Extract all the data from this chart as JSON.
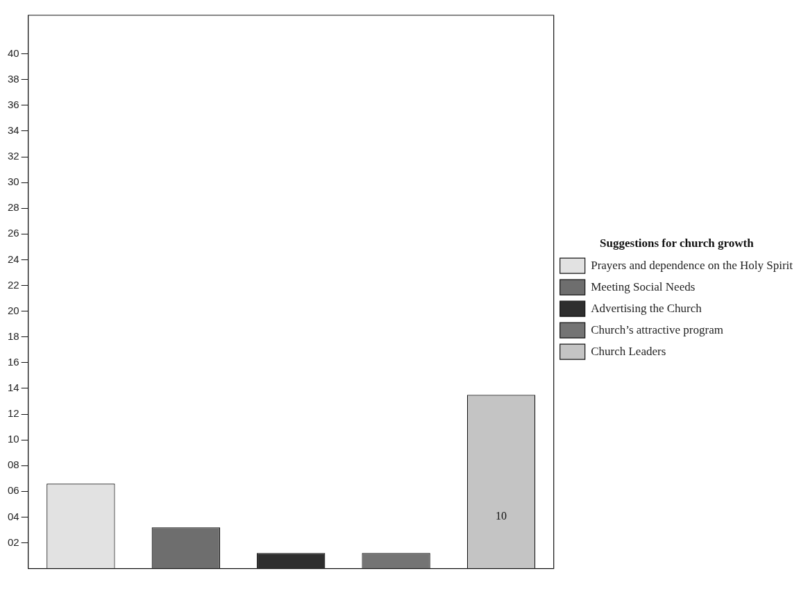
{
  "chart_data": {
    "type": "bar",
    "legend_title": "Suggestions for church growth",
    "categories": [
      null,
      null,
      null,
      null,
      null
    ],
    "stacked": true,
    "series": [
      {
        "name": "Prayers and dependence on the Holy Spirit",
        "color": "#e2e2e2",
        "values": [
          6.6,
          null,
          null,
          null,
          null
        ]
      },
      {
        "name": "Meeting Social Needs",
        "color": "#6e6e6e",
        "values": [
          null,
          3.2,
          null,
          null,
          null
        ]
      },
      {
        "name": "Advertising the Church",
        "color": "#2e2e2e",
        "values": [
          null,
          null,
          1.2,
          null,
          null
        ]
      },
      {
        "name": "Church’s attractive program",
        "color": "#747474",
        "values": [
          null,
          null,
          null,
          1.2,
          null
        ]
      },
      {
        "name": "Church Leaders",
        "color": "#c4c4c4",
        "values": [
          null,
          null,
          null,
          null,
          13.5
        ]
      }
    ],
    "annotations": [
      "10"
    ],
    "ylim": [
      0,
      43
    ],
    "yticks": [
      {
        "value": 2,
        "label": "02"
      },
      {
        "value": 4,
        "label": "04"
      },
      {
        "value": 6,
        "label": "06"
      },
      {
        "value": 8,
        "label": "08"
      },
      10,
      12,
      14,
      16,
      18,
      20,
      22,
      24,
      26,
      28,
      30,
      32,
      34,
      36,
      38,
      40
    ],
    "grid": false,
    "legend": "right"
  }
}
